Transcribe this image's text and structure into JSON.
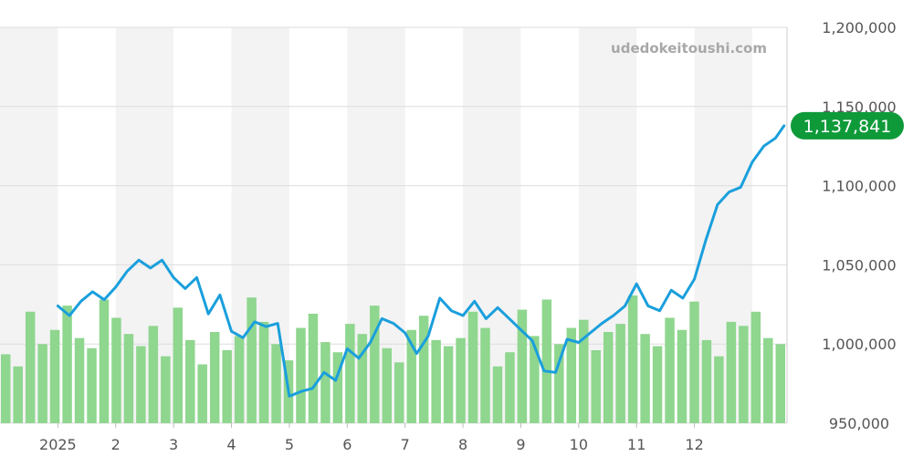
{
  "watermark": "udedokeitoushi.com",
  "colors": {
    "line": "#1a9fdc",
    "volume": "#8fd68f",
    "band": "#f3f3f3",
    "grid": "#dddddd",
    "badge": "#0f9a3a"
  },
  "chart_data": {
    "type": "line",
    "title": "",
    "xlabel": "",
    "ylabel": "",
    "ylim": [
      950000,
      1200000
    ],
    "yticks": [
      950000,
      1000000,
      1050000,
      1100000,
      1150000,
      1200000
    ],
    "ytick_labels": [
      "950,000",
      "1,000,000",
      "1,050,000",
      "1,100,000",
      "1,150,000",
      "1,200,000"
    ],
    "months": [
      "2025",
      "2",
      "3",
      "4",
      "5",
      "6",
      "7",
      "8",
      "9",
      "10",
      "11",
      "12"
    ],
    "grid": true,
    "last_value_label": "1,137,841",
    "series": [
      {
        "x": [
          0.0,
          0.2,
          0.4,
          0.6,
          0.8,
          1.0,
          1.2,
          1.4,
          1.6,
          1.8,
          2.0,
          2.2,
          2.4,
          2.6,
          2.8,
          3.0,
          3.2,
          3.4,
          3.6,
          3.8,
          4.0,
          4.2,
          4.4,
          4.6,
          4.8,
          5.0,
          5.2,
          5.4,
          5.6,
          5.8,
          6.0,
          6.2,
          6.4,
          6.6,
          6.8,
          7.0,
          7.2,
          7.4,
          7.6,
          7.8,
          8.0,
          8.2,
          8.4,
          8.6,
          8.8,
          9.0,
          9.2,
          9.4,
          9.6,
          9.8,
          10.0,
          10.2,
          10.4,
          10.6,
          10.8,
          11.0,
          11.2,
          11.4,
          11.6,
          11.8,
          12.0,
          12.2,
          12.4,
          12.55
        ],
        "values": [
          1024000,
          1018000,
          1027000,
          1033000,
          1028000,
          1036000,
          1046000,
          1053000,
          1048000,
          1053000,
          1042000,
          1035000,
          1042000,
          1019000,
          1031000,
          1008000,
          1004000,
          1014000,
          1011000,
          1013000,
          967000,
          970000,
          972000,
          982000,
          977000,
          997000,
          991000,
          1001000,
          1016000,
          1013000,
          1007000,
          994000,
          1005000,
          1029000,
          1021000,
          1018000,
          1027000,
          1016000,
          1023000,
          1016000,
          1009000,
          1002000,
          983000,
          982000,
          1003000,
          1001000,
          1007000,
          1013000,
          1018000,
          1024000,
          1038000,
          1024000,
          1021000,
          1034000,
          1029000,
          1041000,
          1066000,
          1088000,
          1096000,
          1099000,
          1115000,
          1125000,
          1130000,
          1137841
        ]
      }
    ],
    "volume": {
      "values": [
        34,
        28,
        55,
        39,
        46,
        58,
        42,
        37,
        61,
        52,
        44,
        38,
        48,
        33,
        57,
        41,
        29,
        45,
        36,
        43,
        62,
        50,
        39,
        31,
        47,
        54,
        40,
        35,
        49,
        44,
        58,
        37,
        30,
        46,
        53,
        41,
        38,
        42,
        55,
        47,
        28,
        35,
        56,
        43,
        61,
        39,
        47,
        51,
        36,
        45,
        49,
        63,
        44,
        38,
        52,
        46,
        60,
        41,
        33,
        50,
        48,
        55,
        42,
        39
      ]
    }
  }
}
